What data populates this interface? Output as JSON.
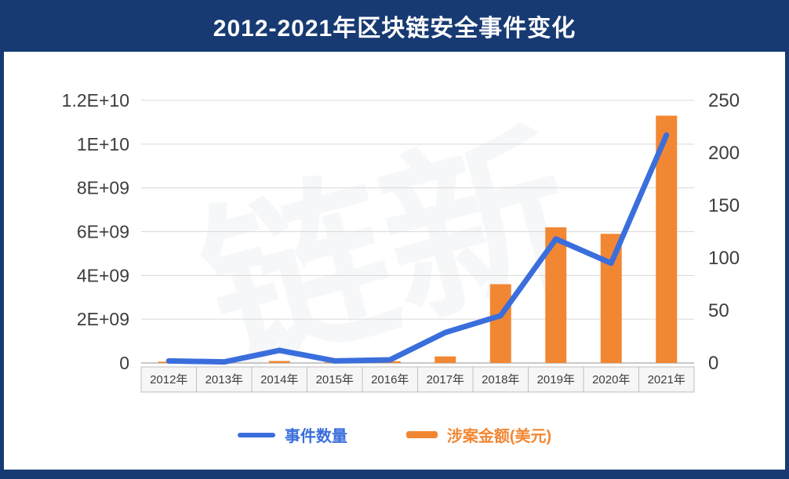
{
  "page": {
    "title": "2012-2021年区块链安全事件变化",
    "watermark": "链新"
  },
  "colors": {
    "header_bg": "#173a72",
    "line_series": "#3a6edc",
    "bar_series": "#f28733",
    "grid": "#d9d9d9",
    "axis_text": "#3d3d3d",
    "category_band_fill": "#f6f6f6",
    "category_band_border": "#bfbfbf"
  },
  "legend": [
    {
      "label": "事件数量",
      "color": "#3a6edc",
      "type": "line"
    },
    {
      "label": "涉案金额(美元)",
      "color": "#f28733",
      "type": "bar"
    }
  ],
  "chart_data": {
    "type": "combo",
    "title": "2012-2021年区块链安全事件变化",
    "categories": [
      "2012年",
      "2013年",
      "2014年",
      "2015年",
      "2016年",
      "2017年",
      "2018年",
      "2019年",
      "2020年",
      "2021年"
    ],
    "series": [
      {
        "name": "事件数量",
        "type": "line",
        "axis": "right",
        "color": "#3a6edc",
        "values": [
          2,
          1,
          12,
          2,
          3,
          29,
          45,
          118,
          95,
          217
        ]
      },
      {
        "name": "涉案金额(美元)",
        "type": "bar",
        "axis": "left",
        "color": "#f28733",
        "values": [
          60000000,
          10000000,
          90000000,
          30000000,
          80000000,
          300000000,
          3600000000,
          6200000000,
          5900000000,
          11300000000
        ]
      }
    ],
    "left_axis": {
      "min": 0,
      "max": 12000000000,
      "ticks": [
        "0",
        "2E+09",
        "4E+09",
        "6E+09",
        "8E+09",
        "1E+10",
        "1.2E+10"
      ]
    },
    "right_axis": {
      "min": 0,
      "max": 250,
      "ticks": [
        "0",
        "50",
        "100",
        "150",
        "200",
        "250"
      ]
    },
    "grid": true,
    "legend_position": "bottom"
  }
}
